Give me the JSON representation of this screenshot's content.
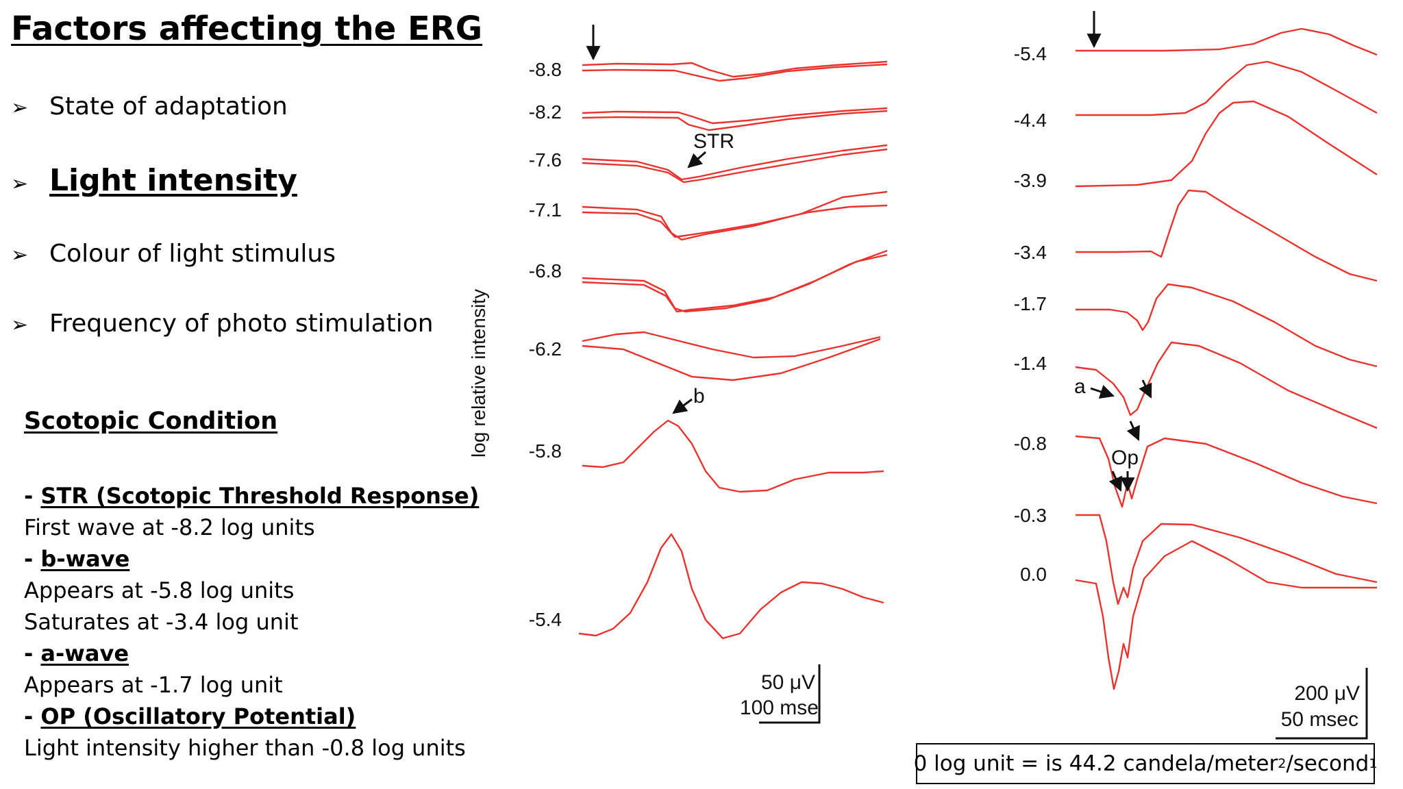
{
  "title": "Factors affecting the ERG",
  "bullets": [
    {
      "text": "State of adaptation",
      "emphasis": false
    },
    {
      "text": "Light intensity",
      "emphasis": true
    },
    {
      "text": "Colour of light stimulus",
      "emphasis": false
    },
    {
      "text": "Frequency of photo stimulation",
      "emphasis": false
    }
  ],
  "notes": {
    "heading": "Scotopic Condition",
    "items": [
      {
        "label": "STR (Scotopic Threshold Response)",
        "lines": [
          "First wave at -8.2 log units"
        ]
      },
      {
        "label": "b-wave",
        "lines": [
          "Appears at -5.8 log units",
          "Saturates at -3.4 log unit"
        ]
      },
      {
        "label": "a-wave",
        "lines": [
          "Appears at -1.7 log unit"
        ]
      },
      {
        "label": "OP (Oscillatory Potential)",
        "lines": [
          "Light intensity higher than -0.8 log units"
        ]
      }
    ]
  },
  "left_panel": {
    "y_axis_label": "log relative intensity",
    "intensities": [
      "-8.8",
      "-8.2",
      "-7.6",
      "-7.1",
      "-6.8",
      "-6.2",
      "-5.8",
      "-5.4"
    ],
    "annotations": {
      "str": "STR",
      "b": "b"
    },
    "scale_bar": {
      "amplitude": "50 μV",
      "time": "100 mse"
    }
  },
  "right_panel": {
    "intensities": [
      "-5.4",
      "-4.4",
      "-3.9",
      "-3.4",
      "-1.7",
      "-1.4",
      "-0.8",
      "-0.3",
      "0.0"
    ],
    "annotations": {
      "a": "a",
      "op": "Op"
    },
    "scale_bar": {
      "amplitude": "200 μV",
      "time": "50 msec"
    }
  },
  "footnote": {
    "prefix": "0 log unit = is 44.2 candela/meter",
    "sup1": "2",
    "middle": "/second",
    "sup2": "1"
  },
  "colors": {
    "trace": "#e8332f",
    "text": "#000000"
  }
}
